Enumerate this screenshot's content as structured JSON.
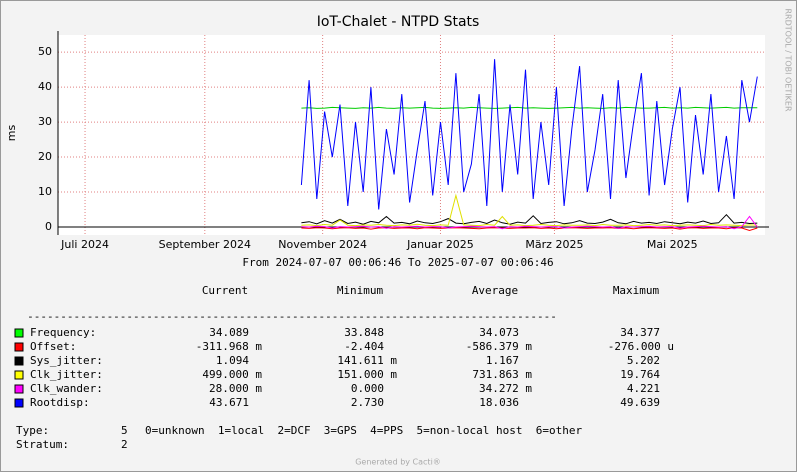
{
  "chart_data": {
    "type": "line",
    "title": "IoT-Chalet - NTPD Stats",
    "ylabel": "ms",
    "watermark": "RRDTOOL / TOBI OETIKER",
    "period": "From 2024-07-07 00:06:46 To 2025-07-07 00:06:46",
    "xlim": [
      -14,
      352
    ],
    "xticks": [
      {
        "value": 0,
        "label": "Juli 2024"
      },
      {
        "value": 62,
        "label": "September 2024"
      },
      {
        "value": 123,
        "label": "November 2024"
      },
      {
        "value": 184,
        "label": "Januar 2025"
      },
      {
        "value": 243,
        "label": "März 2025"
      },
      {
        "value": 304,
        "label": "Mai 2025"
      }
    ],
    "ylim": [
      -2.3,
      54.9
    ],
    "yticks": [
      0,
      10,
      20,
      30,
      40,
      50
    ],
    "grid": true,
    "x": [
      112,
      116,
      120,
      124,
      128,
      132,
      136,
      140,
      144,
      148,
      152,
      156,
      160,
      164,
      168,
      172,
      176,
      180,
      184,
      188,
      192,
      196,
      200,
      204,
      208,
      212,
      216,
      220,
      224,
      228,
      232,
      236,
      240,
      244,
      248,
      252,
      256,
      260,
      264,
      268,
      272,
      276,
      280,
      284,
      288,
      292,
      296,
      300,
      304,
      308,
      312,
      316,
      320,
      324,
      328,
      332,
      336,
      340,
      344,
      348
    ],
    "series": [
      {
        "name": "Frequency:",
        "color": "#00cc00",
        "swatch": "#00ff00",
        "values": [
          34.0,
          34.1,
          33.9,
          34.0,
          34.2,
          34.1,
          34.0,
          33.9,
          34.1,
          34.0,
          34.2,
          34.0,
          33.9,
          34.1,
          34.0,
          34.1,
          34.2,
          34.0,
          33.9,
          34.0,
          34.1,
          34.0,
          34.2,
          34.1,
          34.0,
          33.9,
          34.0,
          34.1,
          34.2,
          34.0,
          34.1,
          34.0,
          33.9,
          34.0,
          34.1,
          34.2,
          34.0,
          34.1,
          34.0,
          33.9,
          34.1,
          34.0,
          34.2,
          34.1,
          34.0,
          34.0,
          34.1,
          34.2,
          34.0,
          34.1,
          34.0,
          34.2,
          34.1,
          34.0,
          34.1,
          34.2,
          34.0,
          34.1,
          34.1,
          34.1
        ]
      },
      {
        "name": "Offset:",
        "color": "#ff0000",
        "swatch": "#ff0000",
        "values": [
          -0.3,
          -0.4,
          -0.2,
          -0.3,
          -0.5,
          -0.3,
          -0.2,
          -0.4,
          -0.3,
          -0.6,
          -0.3,
          -0.2,
          -0.4,
          -0.3,
          -0.3,
          -0.5,
          -0.2,
          -0.3,
          -0.4,
          -0.3,
          -0.2,
          -0.3,
          -0.4,
          -0.5,
          -0.3,
          -0.2,
          -0.3,
          -0.4,
          -0.3,
          -0.3,
          -0.2,
          -0.4,
          -0.3,
          -0.5,
          -0.3,
          -0.2,
          -0.3,
          -0.4,
          -0.3,
          -0.3,
          -0.2,
          -0.4,
          -0.3,
          -0.5,
          -0.3,
          -0.2,
          -0.3,
          -0.4,
          -0.3,
          -0.6,
          -0.3,
          -0.2,
          -0.4,
          -0.3,
          -0.3,
          -0.5,
          -0.2,
          -0.3,
          -1.0,
          -0.3
        ]
      },
      {
        "name": "Sys_jitter:",
        "color": "#000000",
        "swatch": "#000000",
        "values": [
          1.2,
          1.5,
          0.9,
          1.8,
          1.1,
          2.2,
          1.0,
          1.4,
          0.8,
          1.6,
          1.2,
          3.0,
          1.1,
          1.3,
          0.9,
          1.7,
          1.2,
          1.0,
          1.5,
          2.4,
          1.1,
          0.9,
          1.3,
          1.6,
          1.0,
          2.0,
          1.2,
          0.8,
          1.4,
          1.1,
          3.2,
          1.0,
          1.3,
          1.5,
          0.9,
          1.2,
          1.8,
          1.1,
          1.0,
          1.4,
          2.2,
          1.2,
          0.9,
          1.6,
          1.1,
          1.3,
          1.0,
          1.5,
          1.2,
          0.9,
          1.4,
          1.1,
          1.7,
          1.0,
          1.2,
          3.5,
          1.1,
          1.3,
          1.0,
          1.1
        ]
      },
      {
        "name": "Clk_jitter:",
        "color": "#e0e000",
        "swatch": "#ffff00",
        "values": [
          0.5,
          0.6,
          0.4,
          0.7,
          0.5,
          2.0,
          0.5,
          0.4,
          0.6,
          0.5,
          0.7,
          0.5,
          0.4,
          0.6,
          0.5,
          0.8,
          0.5,
          0.4,
          0.6,
          0.5,
          9.0,
          0.6,
          0.5,
          0.4,
          0.7,
          0.5,
          3.0,
          0.5,
          0.6,
          0.4,
          0.5,
          0.7,
          0.5,
          0.4,
          0.6,
          0.5,
          0.5,
          0.6,
          0.4,
          0.7,
          0.5,
          0.5,
          0.6,
          0.4,
          0.5,
          0.7,
          0.5,
          0.6,
          0.4,
          0.5,
          0.6,
          0.5,
          0.4,
          0.7,
          0.5,
          0.6,
          0.5,
          0.4,
          0.6,
          0.5
        ]
      },
      {
        "name": "Clk_wander:",
        "color": "#ff00ff",
        "swatch": "#ff00ff",
        "values": [
          0.1,
          0.0,
          0.2,
          0.1,
          -0.3,
          0.1,
          0.0,
          0.1,
          0.2,
          0.0,
          0.1,
          -0.4,
          0.1,
          0.0,
          0.1,
          0.2,
          0.0,
          0.1,
          0.1,
          -0.3,
          0.0,
          0.1,
          0.2,
          0.1,
          0.0,
          0.1,
          -0.5,
          0.1,
          0.0,
          0.2,
          0.1,
          0.0,
          0.1,
          0.1,
          -0.3,
          0.0,
          0.1,
          0.2,
          0.1,
          0.0,
          0.1,
          -0.4,
          0.1,
          0.0,
          0.1,
          0.2,
          0.0,
          0.1,
          0.1,
          -0.3,
          0.0,
          0.1,
          0.2,
          0.1,
          0.0,
          0.1,
          -0.5,
          0.1,
          3.0,
          0.0
        ]
      },
      {
        "name": "Rootdisp:",
        "color": "#0000ff",
        "swatch": "#0000ff",
        "values": [
          12,
          42,
          8,
          33,
          20,
          35,
          6,
          30,
          10,
          40,
          5,
          28,
          15,
          38,
          7,
          22,
          36,
          9,
          30,
          12,
          44,
          10,
          18,
          38,
          6,
          48,
          10,
          35,
          15,
          45,
          8,
          30,
          12,
          40,
          6,
          28,
          46,
          10,
          22,
          38,
          8,
          42,
          14,
          30,
          44,
          9,
          36,
          12,
          28,
          40,
          7,
          32,
          15,
          38,
          10,
          26,
          8,
          42,
          30,
          43
        ]
      }
    ],
    "legend_header": [
      "Current",
      "Minimum",
      "Average",
      "Maximum"
    ],
    "separator": "--------------------------------------------------------------------------------",
    "legend_rows": [
      [
        "34.089",
        "33.848",
        "34.073",
        "34.377"
      ],
      [
        "-311.968 m",
        "-2.404",
        "-586.379 m",
        "-276.000 u"
      ],
      [
        "1.094",
        "141.611 m",
        "1.167",
        "5.202"
      ],
      [
        "499.000 m",
        "151.000 m",
        "731.863 m",
        "19.764"
      ],
      [
        "28.000 m",
        "0.000",
        "34.272 m",
        "4.221"
      ],
      [
        "43.671",
        "2.730",
        "18.036",
        "49.639"
      ]
    ],
    "info": [
      [
        "Type:",
        "5",
        "0=unknown  1=local  2=DCF  3=GPS  4=PPS  5=non-local host  6=other"
      ],
      [
        "Stratum:",
        "2",
        ""
      ]
    ],
    "footer": "Generated by Cacti®"
  }
}
